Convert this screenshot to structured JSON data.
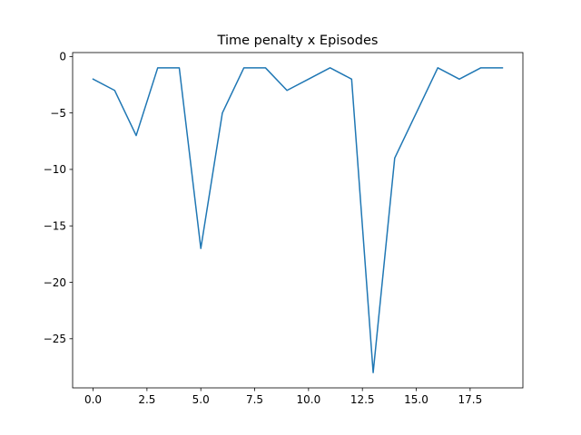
{
  "chart_data": {
    "type": "line",
    "title": "Time penalty x Episodes",
    "xlabel": "",
    "ylabel": "",
    "x": [
      0,
      1,
      2,
      3,
      4,
      5,
      6,
      7,
      8,
      9,
      10,
      11,
      12,
      13,
      14,
      15,
      16,
      17,
      18,
      19
    ],
    "series": [
      {
        "values": [
          -2,
          -3,
          -7,
          -1,
          -1,
          -17,
          -5,
          -1,
          -1,
          -3,
          -2,
          -1,
          -2,
          -28,
          -9,
          -5,
          -1,
          -2,
          -1,
          -1
        ],
        "color": "#1f77b4"
      }
    ],
    "xlim": [
      -0.95,
      19.95
    ],
    "ylim": [
      -29.35,
      0.35
    ],
    "xticks": [
      0,
      2.5,
      5,
      7.5,
      10,
      12.5,
      15,
      17.5
    ],
    "xtick_labels": [
      "0.0",
      "2.5",
      "5.0",
      "7.5",
      "10.0",
      "12.5",
      "15.0",
      "17.5"
    ],
    "yticks": [
      0,
      -5,
      -10,
      -15,
      -20,
      -25
    ],
    "ytick_labels": [
      "0",
      "−5",
      "−10",
      "−15",
      "−20",
      "−25"
    ],
    "grid": false,
    "legend": "none"
  }
}
